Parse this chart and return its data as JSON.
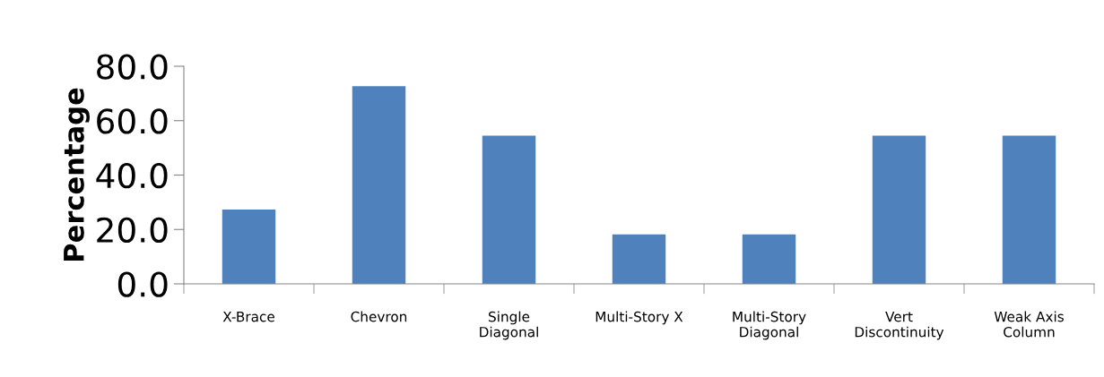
{
  "chart_data": {
    "type": "bar",
    "ylabel": "Percentage",
    "categories": [
      "X-Brace",
      "Chevron",
      "Single\nDiagonal",
      "Multi-Story X",
      "Multi-Story\nDiagonal",
      "Vert\nDiscontinuity",
      "Weak Axis\nColumn"
    ],
    "values": [
      27.3,
      72.7,
      54.5,
      18.2,
      18.2,
      54.5,
      54.5
    ],
    "color": "#4f81bd",
    "ylim": [
      0,
      80
    ],
    "yticks": [
      {
        "value": 0,
        "label": "0.0"
      },
      {
        "value": 20,
        "label": "20.0"
      },
      {
        "value": 40,
        "label": "40.0"
      },
      {
        "value": 60,
        "label": "60.0"
      },
      {
        "value": 80,
        "label": "80.0"
      }
    ],
    "grid": false,
    "legend": false
  }
}
